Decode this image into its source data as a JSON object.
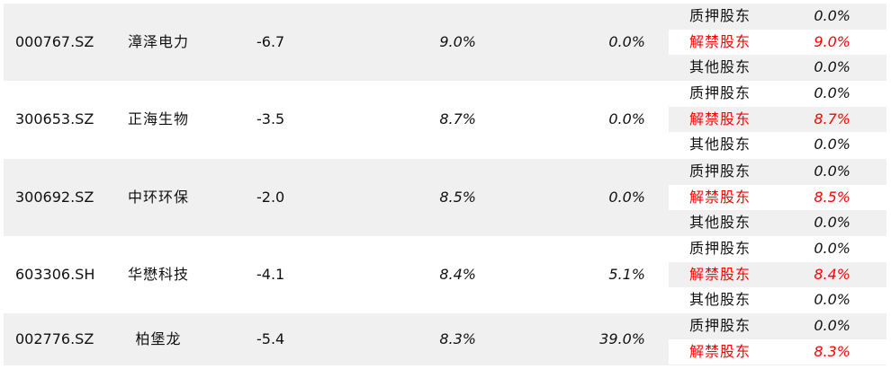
{
  "colors": {
    "highlight": "#ff0000",
    "band": "#f0f0f0"
  },
  "rows": [
    {
      "code": "000767.SZ",
      "name": "漳泽电力",
      "change": "-6.7",
      "pct1": "9.0%",
      "pct2": "0.0%",
      "holders": [
        {
          "label": "质押股东",
          "value": "0.0%"
        },
        {
          "label": "解禁股东",
          "value": "9.0%"
        },
        {
          "label": "其他股东",
          "value": "0.0%"
        }
      ]
    },
    {
      "code": "300653.SZ",
      "name": "正海生物",
      "change": "-3.5",
      "pct1": "8.7%",
      "pct2": "0.0%",
      "holders": [
        {
          "label": "质押股东",
          "value": "0.0%"
        },
        {
          "label": "解禁股东",
          "value": "8.7%"
        },
        {
          "label": "其他股东",
          "value": "0.0%"
        }
      ]
    },
    {
      "code": "300692.SZ",
      "name": "中环环保",
      "change": "-2.0",
      "pct1": "8.5%",
      "pct2": "0.0%",
      "holders": [
        {
          "label": "质押股东",
          "value": "0.0%"
        },
        {
          "label": "解禁股东",
          "value": "8.5%"
        },
        {
          "label": "其他股东",
          "value": "0.0%"
        }
      ]
    },
    {
      "code": "603306.SH",
      "name": "华懋科技",
      "change": "-4.1",
      "pct1": "8.4%",
      "pct2": "5.1%",
      "holders": [
        {
          "label": "质押股东",
          "value": "0.0%"
        },
        {
          "label": "解禁股东",
          "value": "8.4%"
        },
        {
          "label": "其他股东",
          "value": "0.0%"
        }
      ]
    },
    {
      "code": "002776.SZ",
      "name": "柏堡龙",
      "change": "-5.4",
      "pct1": "8.3%",
      "pct2": "39.0%",
      "holders": [
        {
          "label": "质押股东",
          "value": "0.0%"
        },
        {
          "label": "解禁股东",
          "value": "8.3%"
        }
      ]
    }
  ]
}
